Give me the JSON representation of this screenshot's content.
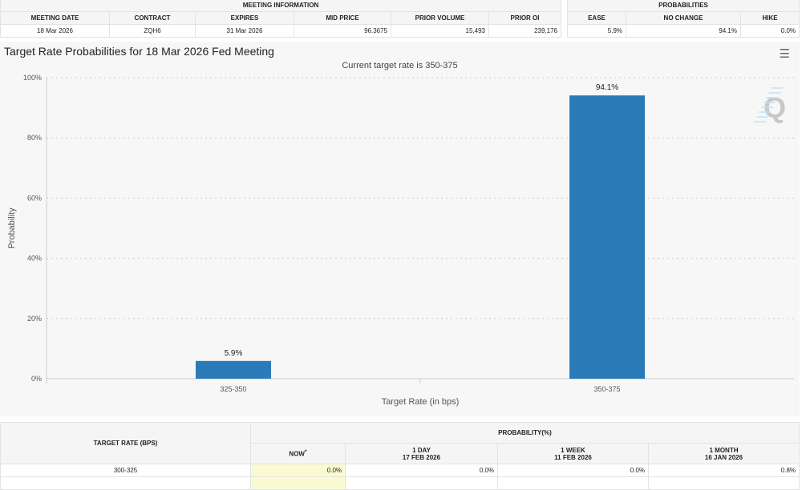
{
  "meeting": {
    "group": "MEETING INFORMATION",
    "headers": [
      "MEETING DATE",
      "CONTRACT",
      "EXPIRES",
      "MID PRICE",
      "PRIOR VOLUME",
      "PRIOR OI"
    ],
    "values": [
      "18 Mar 2026",
      "ZQH6",
      "31 Mar 2026",
      "96.3675",
      "15,493",
      "239,176"
    ]
  },
  "probabilities": {
    "group": "PROBABILITIES",
    "headers": [
      "EASE",
      "NO CHANGE",
      "HIKE"
    ],
    "values": [
      "5.9%",
      "94.1%",
      "0.0%"
    ]
  },
  "chart": {
    "title": "Target Rate Probabilities for 18 Mar 2026 Fed Meeting",
    "subtitle": "Current target rate is 350-375",
    "menu_icon": "hamburger-icon",
    "watermark": "Q"
  },
  "chart_data": {
    "type": "bar",
    "categories": [
      "325-350",
      "350-375"
    ],
    "values": [
      5.9,
      94.1
    ],
    "data_labels": [
      "5.9%",
      "94.1%"
    ],
    "xlabel": "Target Rate (in bps)",
    "ylabel": "Probability",
    "ylim": [
      0,
      100
    ],
    "yticks": [
      "0%",
      "20%",
      "40%",
      "60%",
      "80%",
      "100%"
    ],
    "grid": true,
    "color": "#2b7bb9"
  },
  "prob_table": {
    "rate_header": "TARGET RATE (BPS)",
    "group": "PROBABILITY(%)",
    "cols": [
      {
        "l1": "NOW",
        "l2": "*"
      },
      {
        "l1": "1 DAY",
        "l2": "17 FEB 2026"
      },
      {
        "l1": "1 WEEK",
        "l2": "11 FEB 2026"
      },
      {
        "l1": "1 MONTH",
        "l2": "16 JAN 2026"
      }
    ],
    "rows": [
      {
        "rate": "300-325",
        "vals": [
          "0.0%",
          "0.0%",
          "0.0%",
          "0.8%"
        ]
      }
    ]
  }
}
